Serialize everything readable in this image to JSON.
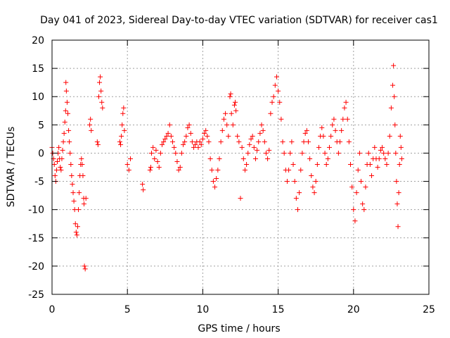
{
  "chart_data": {
    "type": "scatter",
    "title": "Day 041 of 2023, Sidereal Day-to-day VTEC variation (SDTVAR) for receiver cas1",
    "xlabel": "GPS time / hours",
    "ylabel": "SDTVAR / TECUs",
    "xlim": [
      0,
      25
    ],
    "ylim": [
      -25,
      20
    ],
    "grid": true,
    "marker": "+",
    "series_color": "#ff0000",
    "x_ticks": [
      "0",
      "5",
      "10",
      "15",
      "20",
      "25"
    ],
    "y_ticks": [
      "20",
      "15",
      "10",
      "5",
      "0",
      "-5",
      "-10",
      "-15",
      "-20",
      "-25"
    ],
    "series": [
      {
        "name": "SDTVAR",
        "points": [
          [
            0.0,
            1.0
          ],
          [
            0.05,
            0.0
          ],
          [
            0.1,
            -1.0
          ],
          [
            0.15,
            -2.0
          ],
          [
            0.2,
            -4.0
          ],
          [
            0.25,
            -5.0
          ],
          [
            0.3,
            -3.0
          ],
          [
            0.35,
            -1.5
          ],
          [
            0.4,
            0.0
          ],
          [
            0.45,
            1.0
          ],
          [
            0.5,
            -1.0
          ],
          [
            0.55,
            -2.5
          ],
          [
            0.6,
            -3.0
          ],
          [
            0.65,
            -1.0
          ],
          [
            0.7,
            0.5
          ],
          [
            0.75,
            2.0
          ],
          [
            0.8,
            3.5
          ],
          [
            0.85,
            5.5
          ],
          [
            0.9,
            7.5
          ],
          [
            0.92,
            12.5
          ],
          [
            0.95,
            11.0
          ],
          [
            1.0,
            9.0
          ],
          [
            1.05,
            7.0
          ],
          [
            1.1,
            4.0
          ],
          [
            1.15,
            2.0
          ],
          [
            1.2,
            0.0
          ],
          [
            1.25,
            -2.0
          ],
          [
            1.3,
            -4.0
          ],
          [
            1.35,
            -5.5
          ],
          [
            1.4,
            -7.0
          ],
          [
            1.45,
            -8.5
          ],
          [
            1.5,
            -10.0
          ],
          [
            1.55,
            -12.5
          ],
          [
            1.6,
            -14.0
          ],
          [
            1.65,
            -14.5
          ],
          [
            1.7,
            -13.0
          ],
          [
            1.75,
            -10.0
          ],
          [
            1.8,
            -7.0
          ],
          [
            1.85,
            -4.0
          ],
          [
            1.9,
            -2.0
          ],
          [
            1.95,
            -1.0
          ],
          [
            2.0,
            -2.0
          ],
          [
            2.05,
            -4.0
          ],
          [
            2.1,
            -8.0
          ],
          [
            2.12,
            -9.0
          ],
          [
            2.15,
            -20.0
          ],
          [
            2.2,
            -20.5
          ],
          [
            2.25,
            -8.0
          ],
          [
            2.5,
            5.0
          ],
          [
            2.55,
            6.0
          ],
          [
            2.6,
            4.0
          ],
          [
            3.0,
            2.0
          ],
          [
            3.05,
            1.5
          ],
          [
            3.1,
            10.0
          ],
          [
            3.15,
            12.5
          ],
          [
            3.2,
            13.5
          ],
          [
            3.25,
            11.0
          ],
          [
            3.3,
            9.0
          ],
          [
            3.35,
            8.0
          ],
          [
            4.5,
            2.0
          ],
          [
            4.55,
            1.5
          ],
          [
            4.6,
            3.0
          ],
          [
            4.65,
            5.0
          ],
          [
            4.7,
            7.0
          ],
          [
            4.75,
            8.0
          ],
          [
            4.8,
            4.0
          ],
          [
            5.0,
            -2.0
          ],
          [
            5.1,
            -3.0
          ],
          [
            5.2,
            -1.0
          ],
          [
            6.0,
            -5.5
          ],
          [
            6.05,
            -6.5
          ],
          [
            6.5,
            -3.0
          ],
          [
            6.55,
            -2.5
          ],
          [
            6.6,
            0.0
          ],
          [
            6.7,
            1.0
          ],
          [
            6.8,
            -1.0
          ],
          [
            6.9,
            0.5
          ],
          [
            7.0,
            -1.5
          ],
          [
            7.1,
            -2.5
          ],
          [
            7.2,
            0.0
          ],
          [
            7.3,
            1.5
          ],
          [
            7.4,
            2.0
          ],
          [
            7.5,
            2.5
          ],
          [
            7.6,
            3.0
          ],
          [
            7.7,
            3.5
          ],
          [
            7.8,
            5.0
          ],
          [
            7.9,
            3.0
          ],
          [
            8.0,
            2.0
          ],
          [
            8.1,
            1.0
          ],
          [
            8.2,
            0.0
          ],
          [
            8.3,
            -1.5
          ],
          [
            8.4,
            -3.0
          ],
          [
            8.5,
            -2.5
          ],
          [
            8.6,
            0.0
          ],
          [
            8.7,
            1.5
          ],
          [
            8.8,
            2.0
          ],
          [
            8.9,
            3.0
          ],
          [
            9.0,
            4.5
          ],
          [
            9.1,
            5.0
          ],
          [
            9.2,
            3.5
          ],
          [
            9.3,
            2.0
          ],
          [
            9.4,
            1.0
          ],
          [
            9.5,
            1.5
          ],
          [
            9.6,
            2.0
          ],
          [
            9.7,
            1.0
          ],
          [
            9.8,
            2.0
          ],
          [
            9.9,
            1.5
          ],
          [
            10.0,
            2.5
          ],
          [
            10.1,
            3.5
          ],
          [
            10.2,
            4.0
          ],
          [
            10.3,
            3.0
          ],
          [
            10.4,
            2.0
          ],
          [
            10.5,
            -1.0
          ],
          [
            10.6,
            -3.0
          ],
          [
            10.7,
            -5.0
          ],
          [
            10.8,
            -6.0
          ],
          [
            10.9,
            -4.5
          ],
          [
            11.0,
            -3.0
          ],
          [
            11.1,
            -1.0
          ],
          [
            11.2,
            2.0
          ],
          [
            11.3,
            4.0
          ],
          [
            11.4,
            6.0
          ],
          [
            11.5,
            7.0
          ],
          [
            11.6,
            5.0
          ],
          [
            11.7,
            3.0
          ],
          [
            11.8,
            10.0
          ],
          [
            11.85,
            10.5
          ],
          [
            11.9,
            7.0
          ],
          [
            12.0,
            5.0
          ],
          [
            12.1,
            8.5
          ],
          [
            12.15,
            9.0
          ],
          [
            12.2,
            7.5
          ],
          [
            12.3,
            3.0
          ],
          [
            12.4,
            2.0
          ],
          [
            12.5,
            -8.0
          ],
          [
            12.6,
            1.0
          ],
          [
            12.7,
            -1.0
          ],
          [
            12.8,
            -3.0
          ],
          [
            12.9,
            -2.0
          ],
          [
            13.0,
            0.0
          ],
          [
            13.1,
            1.5
          ],
          [
            13.2,
            2.5
          ],
          [
            13.3,
            3.0
          ],
          [
            13.4,
            1.0
          ],
          [
            13.5,
            -1.0
          ],
          [
            13.6,
            0.5
          ],
          [
            13.7,
            2.0
          ],
          [
            13.8,
            3.5
          ],
          [
            13.9,
            5.0
          ],
          [
            14.0,
            4.0
          ],
          [
            14.1,
            2.0
          ],
          [
            14.2,
            0.0
          ],
          [
            14.3,
            -1.0
          ],
          [
            14.4,
            0.5
          ],
          [
            14.5,
            7.0
          ],
          [
            14.6,
            9.0
          ],
          [
            14.7,
            10.0
          ],
          [
            14.8,
            12.0
          ],
          [
            14.9,
            13.5
          ],
          [
            15.0,
            11.0
          ],
          [
            15.1,
            9.0
          ],
          [
            15.2,
            6.0
          ],
          [
            15.3,
            2.0
          ],
          [
            15.4,
            0.0
          ],
          [
            15.5,
            -3.0
          ],
          [
            15.6,
            -5.0
          ],
          [
            15.7,
            -3.0
          ],
          [
            15.8,
            0.0
          ],
          [
            15.9,
            2.0
          ],
          [
            16.0,
            -2.0
          ],
          [
            16.1,
            -5.0
          ],
          [
            16.2,
            -8.0
          ],
          [
            16.3,
            -10.0
          ],
          [
            16.4,
            -7.0
          ],
          [
            16.5,
            -3.0
          ],
          [
            16.6,
            0.0
          ],
          [
            16.7,
            2.0
          ],
          [
            16.8,
            3.5
          ],
          [
            16.9,
            4.0
          ],
          [
            17.0,
            2.0
          ],
          [
            17.1,
            -1.0
          ],
          [
            17.2,
            -4.0
          ],
          [
            17.3,
            -6.0
          ],
          [
            17.4,
            -7.0
          ],
          [
            17.5,
            -5.0
          ],
          [
            17.6,
            -2.0
          ],
          [
            17.7,
            1.0
          ],
          [
            17.8,
            3.0
          ],
          [
            17.9,
            4.5
          ],
          [
            18.0,
            3.0
          ],
          [
            18.1,
            0.0
          ],
          [
            18.2,
            -2.0
          ],
          [
            18.3,
            -1.0
          ],
          [
            18.4,
            1.0
          ],
          [
            18.5,
            3.0
          ],
          [
            18.6,
            5.0
          ],
          [
            18.7,
            6.0
          ],
          [
            18.8,
            4.0
          ],
          [
            18.9,
            2.0
          ],
          [
            19.0,
            0.0
          ],
          [
            19.1,
            2.0
          ],
          [
            19.2,
            4.0
          ],
          [
            19.3,
            6.0
          ],
          [
            19.4,
            8.0
          ],
          [
            19.5,
            9.0
          ],
          [
            19.6,
            6.0
          ],
          [
            19.7,
            2.0
          ],
          [
            19.8,
            -2.0
          ],
          [
            19.9,
            -6.0
          ],
          [
            20.0,
            -10.0
          ],
          [
            20.1,
            -12.0
          ],
          [
            20.2,
            -7.0
          ],
          [
            20.3,
            -3.0
          ],
          [
            20.4,
            0.0
          ],
          [
            20.5,
            -5.0
          ],
          [
            20.6,
            -9.0
          ],
          [
            20.7,
            -10.0
          ],
          [
            20.8,
            -6.0
          ],
          [
            20.9,
            -2.0
          ],
          [
            21.0,
            0.0
          ],
          [
            21.1,
            -2.0
          ],
          [
            21.2,
            -4.0
          ],
          [
            21.3,
            -1.0
          ],
          [
            21.4,
            1.0
          ],
          [
            21.5,
            -1.0
          ],
          [
            21.6,
            -2.5
          ],
          [
            21.7,
            -1.0
          ],
          [
            21.8,
            0.5
          ],
          [
            21.9,
            1.0
          ],
          [
            22.0,
            0.0
          ],
          [
            22.1,
            -1.0
          ],
          [
            22.2,
            -2.0
          ],
          [
            22.3,
            0.0
          ],
          [
            22.4,
            3.0
          ],
          [
            22.5,
            8.0
          ],
          [
            22.6,
            12.0
          ],
          [
            22.65,
            15.5
          ],
          [
            22.7,
            10.0
          ],
          [
            22.75,
            5.0
          ],
          [
            22.8,
            0.0
          ],
          [
            22.85,
            -5.0
          ],
          [
            22.9,
            -9.0
          ],
          [
            22.95,
            -13.0
          ],
          [
            23.0,
            -7.0
          ],
          [
            23.05,
            -2.0
          ],
          [
            23.1,
            3.0
          ],
          [
            23.15,
            1.0
          ],
          [
            23.2,
            -1.0
          ]
        ]
      }
    ]
  }
}
